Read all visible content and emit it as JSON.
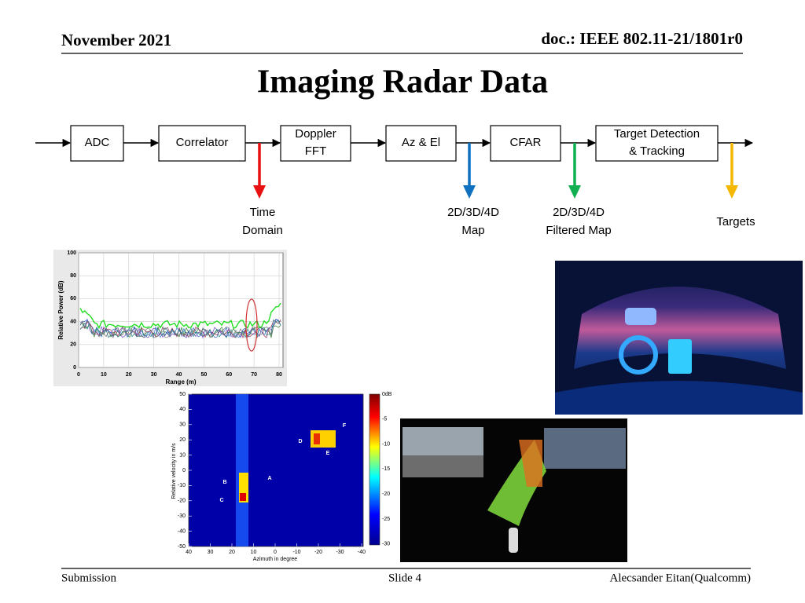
{
  "header": {
    "date": "November 2021",
    "doc": "doc.: IEEE 802.11-21/1801r0"
  },
  "title": "Imaging Radar Data",
  "diagram": {
    "blocks": [
      [
        "ADC"
      ],
      [
        "Correlator"
      ],
      [
        "Doppler",
        "FFT"
      ],
      [
        "Az & El"
      ],
      [
        "CFAR"
      ],
      [
        "Target Detection",
        "& Tracking"
      ]
    ],
    "outputs": [
      [
        "Time",
        "Domain"
      ],
      [
        "2D/3D/4D",
        "Map"
      ],
      [
        "2D/3D/4D",
        "Filtered Map"
      ],
      [
        "Targets"
      ]
    ]
  },
  "figures": {
    "range_plot": {
      "y_label": "Relative Power (dB)",
      "x_label": "Range (m)",
      "yticks": [
        0,
        20,
        40,
        60,
        80,
        100
      ],
      "xticks": [
        0,
        10,
        20,
        30,
        40,
        50,
        60,
        70,
        80
      ]
    },
    "velocity_plot": {
      "y_label": "Relative velocity in m/s",
      "x_label": "Azimuth in degree",
      "yticks": [
        50,
        40,
        30,
        20,
        10,
        0,
        -10,
        -20,
        -30,
        -40,
        -50
      ],
      "xticks": [
        40,
        30,
        20,
        10,
        0,
        -10,
        -20,
        -30,
        -40
      ],
      "colorbar": [
        "0dB",
        "-5",
        "-10",
        "-15",
        "-20",
        "-25",
        "-30"
      ],
      "points": [
        "A",
        "B",
        "C",
        "D",
        "E",
        "F"
      ]
    }
  },
  "footer": {
    "left": "Submission",
    "center": "Slide 4",
    "right": "Alecsander Eitan(Qualcomm)"
  }
}
